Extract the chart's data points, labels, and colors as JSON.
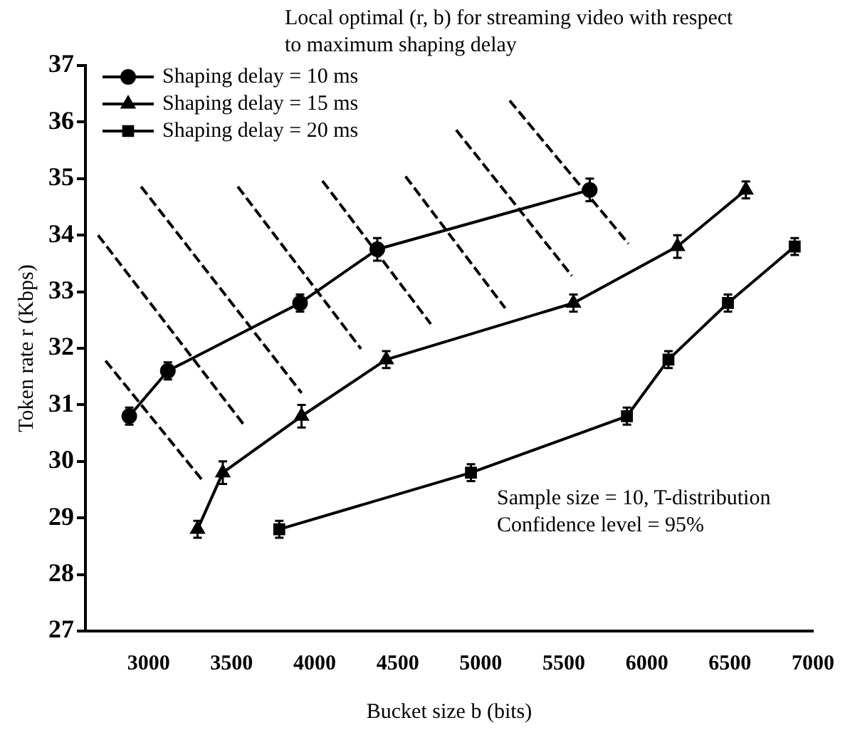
{
  "chart_data": {
    "type": "line",
    "title": "Local optimal (r, b) for streaming video with respect to maximum shaping delay",
    "xlabel": "Bucket size b (bits)",
    "ylabel": "Token rate r (Kbps)",
    "annotations": [
      "Sample size = 10, T-distribution",
      "Confidence level = 95%"
    ],
    "xlim": [
      2620,
      7000
    ],
    "xticks": [
      3000,
      3500,
      4000,
      4500,
      5000,
      5500,
      6000,
      6500,
      7000
    ],
    "ylim": [
      27,
      37
    ],
    "yticks": [
      27,
      28,
      29,
      30,
      31,
      32,
      33,
      34,
      35,
      36,
      37
    ],
    "grid": false,
    "legend": "top left",
    "line_style": "solid",
    "series": [
      {
        "name": "Shaping delay = 10 ms",
        "color": "#000000",
        "marker": "circle",
        "x": [
          2884,
          3116,
          3912,
          4377,
          5656
        ],
        "values": [
          30.8,
          31.6,
          32.8,
          33.75,
          34.8
        ],
        "errors": [
          0.15,
          0.15,
          0.15,
          0.2,
          0.2
        ]
      },
      {
        "name": "Shaping delay = 15 ms",
        "color": "#000000",
        "marker": "triangle",
        "x": [
          3295,
          3447,
          3921,
          4431,
          5558,
          6184,
          6596
        ],
        "values": [
          28.8,
          29.8,
          30.8,
          31.8,
          32.8,
          33.8,
          34.8
        ],
        "errors": [
          0.15,
          0.2,
          0.2,
          0.15,
          0.15,
          0.2,
          0.15
        ]
      },
      {
        "name": "Shaping delay = 20 ms",
        "color": "#000000",
        "marker": "square",
        "x": [
          3787,
          4941,
          5880,
          6130,
          6488,
          6890
        ],
        "values": [
          28.8,
          29.8,
          30.8,
          31.8,
          32.8,
          33.8
        ],
        "errors": [
          0.15,
          0.15,
          0.15,
          0.15,
          0.15,
          0.15
        ]
      },
      {
        "color": "#000000",
        "marker": "none",
        "line_style": "dashed",
        "x": [
          2696,
          3581,
          null,
          2741,
          3331,
          null,
          2955,
          3921,
          null,
          3537,
          4279,
          null,
          4047,
          4699,
          null,
          4547,
          5147,
          null,
          4852,
          5549,
          null,
          5174,
          5889
        ],
        "values": [
          34.0,
          30.62,
          null,
          31.78,
          29.64,
          null,
          34.86,
          31.21,
          null,
          34.86,
          31.99,
          null,
          34.96,
          32.43,
          null,
          35.04,
          32.71,
          null,
          35.86,
          33.28,
          null,
          36.38,
          33.85
        ]
      }
    ]
  }
}
